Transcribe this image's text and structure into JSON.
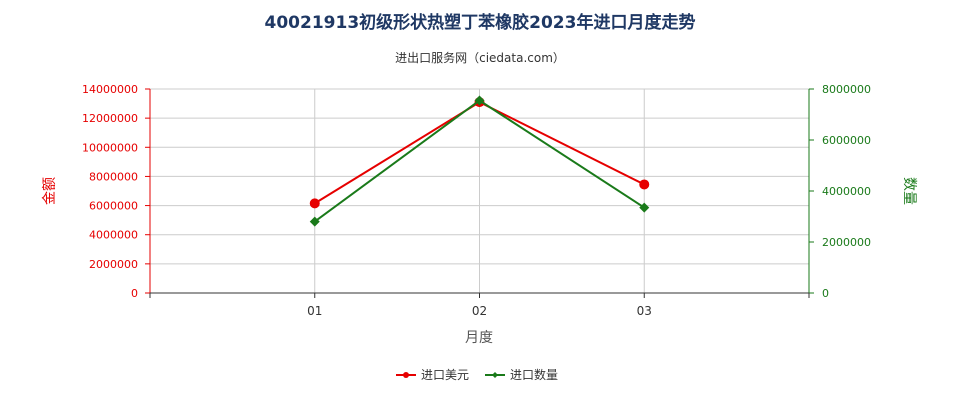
{
  "chart_data": {
    "type": "line",
    "title": "40021913初级形状热塑丁苯橡胶2023年进口月度走势",
    "subtitle": "进出口服务网（ciedata.com）",
    "xlabel": "月度",
    "ylabel_left": "金额",
    "ylabel_right": "数量",
    "categories": [
      "01",
      "02",
      "03"
    ],
    "ylim_left": [
      0,
      14000000
    ],
    "yticks_left": [
      0,
      2000000,
      4000000,
      6000000,
      8000000,
      10000000,
      12000000,
      14000000
    ],
    "ylim_right": [
      0,
      8000000
    ],
    "yticks_right": [
      0,
      2000000,
      4000000,
      6000000,
      8000000
    ],
    "grid": true,
    "legend_position": "bottom",
    "series": [
      {
        "name": "进口美元",
        "axis": "left",
        "color": "#e60000",
        "marker": "circle",
        "values": [
          6150000,
          13100000,
          7450000
        ]
      },
      {
        "name": "进口数量",
        "axis": "right",
        "color": "#1a7a1a",
        "marker": "diamond",
        "values": [
          2800000,
          7550000,
          3350000
        ]
      }
    ]
  }
}
